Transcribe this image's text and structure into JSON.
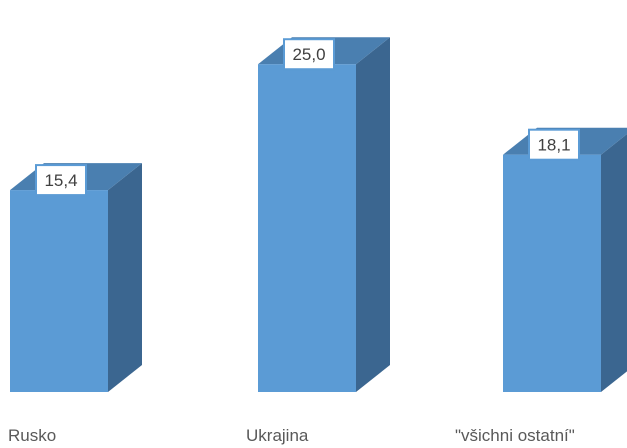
{
  "chart_data": {
    "type": "bar",
    "style": "3d-column",
    "categories": [
      "Rusko",
      "Ukrajina",
      "\"všichni ostatní\""
    ],
    "values": [
      15.4,
      25.0,
      18.1
    ],
    "data_labels": [
      "15,4",
      "25,0",
      "18,1"
    ],
    "title": "",
    "xlabel": "",
    "ylabel": "",
    "ylim": [
      0,
      27
    ],
    "grid": false,
    "legend": "none",
    "colors": {
      "front": "#5b9bd5",
      "side": "#3b6690",
      "top": "#4a7fb0",
      "label_border": "#5b9bd5"
    }
  }
}
